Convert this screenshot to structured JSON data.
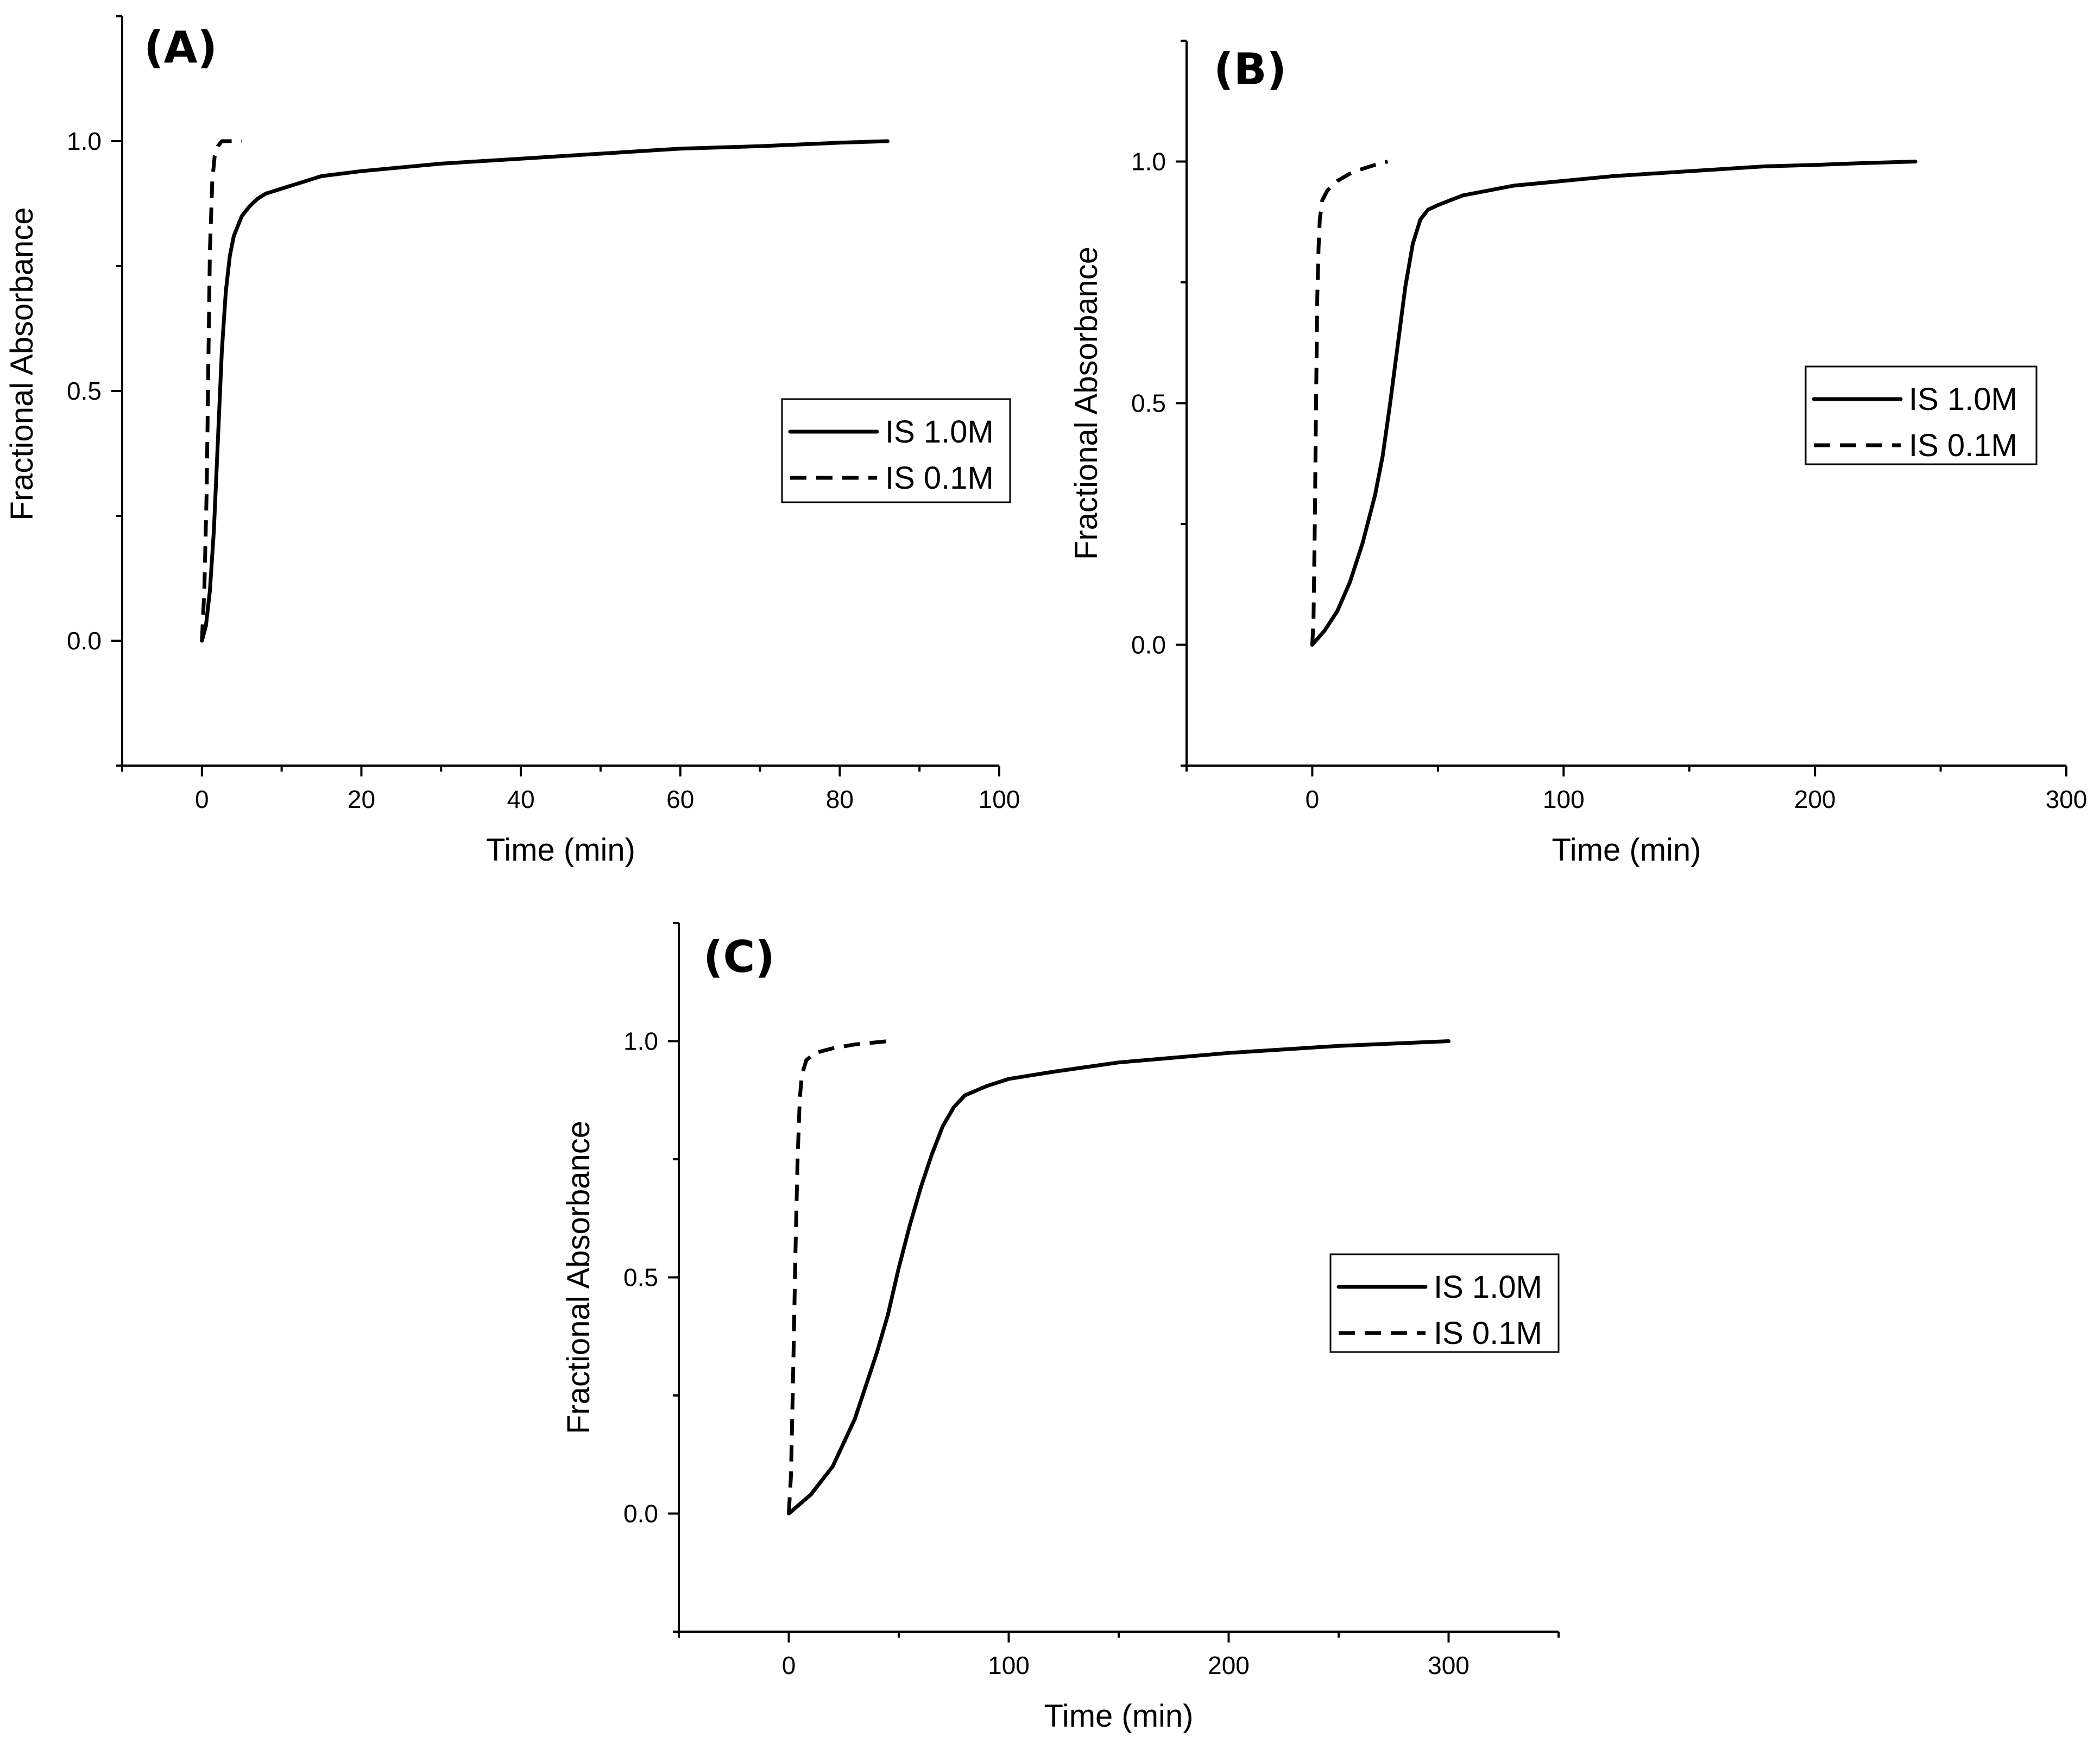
{
  "chart_data": [
    {
      "id": "A",
      "type": "line",
      "panel_label": "(A)",
      "xlabel": "Time (min)",
      "ylabel": "Fractional Absorbance",
      "xlim": [
        -10,
        100
      ],
      "ylim": [
        -0.25,
        1.25
      ],
      "xticks": [
        0,
        20,
        40,
        60,
        80,
        100
      ],
      "xtick_labels": [
        "0",
        "20",
        "40",
        "60",
        "80",
        "100"
      ],
      "yticks": [
        0.0,
        0.5,
        1.0
      ],
      "ytick_labels": [
        "0.0",
        "0.5",
        "1.0"
      ],
      "legend_position": "center-right",
      "series": [
        {
          "name": "IS 1.0M",
          "style": "solid",
          "x": [
            0,
            0.5,
            1,
            1.5,
            2,
            2.5,
            3,
            3.5,
            4,
            5,
            6,
            7,
            8,
            10,
            12,
            15,
            20,
            30,
            40,
            50,
            60,
            70,
            80,
            86
          ],
          "y": [
            0,
            0.03,
            0.1,
            0.22,
            0.4,
            0.58,
            0.7,
            0.77,
            0.81,
            0.85,
            0.87,
            0.885,
            0.895,
            0.905,
            0.915,
            0.93,
            0.94,
            0.955,
            0.965,
            0.975,
            0.985,
            0.99,
            0.997,
            1.0
          ]
        },
        {
          "name": "IS 0.1M",
          "style": "dashed",
          "x": [
            0,
            0.3,
            0.6,
            0.8,
            1.0,
            1.3,
            1.6,
            2.0,
            2.5,
            3.5,
            5
          ],
          "y": [
            0,
            0.1,
            0.3,
            0.55,
            0.78,
            0.92,
            0.97,
            0.99,
            1.0,
            1.0,
            1.0
          ]
        }
      ]
    },
    {
      "id": "B",
      "type": "line",
      "panel_label": "(B)",
      "xlabel": "Time (min)",
      "ylabel": "Fractional Absorbance",
      "xlim": [
        -50,
        300
      ],
      "ylim": [
        -0.25,
        1.25
      ],
      "xticks": [
        0,
        100,
        200,
        300
      ],
      "xtick_labels": [
        "0",
        "100",
        "200",
        "300"
      ],
      "yticks": [
        0.0,
        0.5,
        1.0
      ],
      "ytick_labels": [
        "0.0",
        "0.5",
        "1.0"
      ],
      "legend_position": "right",
      "series": [
        {
          "name": "IS 1.0M",
          "style": "solid",
          "x": [
            0,
            5,
            10,
            15,
            20,
            25,
            28,
            31,
            34,
            37,
            40,
            43,
            46,
            50,
            55,
            60,
            70,
            80,
            100,
            120,
            150,
            180,
            200,
            220,
            240
          ],
          "y": [
            0,
            0.03,
            0.07,
            0.13,
            0.21,
            0.31,
            0.39,
            0.5,
            0.62,
            0.74,
            0.83,
            0.88,
            0.9,
            0.91,
            0.92,
            0.93,
            0.94,
            0.95,
            0.96,
            0.97,
            0.98,
            0.99,
            0.993,
            0.997,
            1.0
          ]
        },
        {
          "name": "IS 0.1M",
          "style": "dashed",
          "x": [
            0,
            0.5,
            1,
            1.5,
            2,
            2.5,
            3,
            4,
            6,
            10,
            15,
            20,
            25,
            30
          ],
          "y": [
            0,
            0.05,
            0.25,
            0.5,
            0.72,
            0.82,
            0.88,
            0.92,
            0.94,
            0.96,
            0.975,
            0.985,
            0.993,
            1.0
          ]
        }
      ]
    },
    {
      "id": "C",
      "type": "line",
      "panel_label": "(C)",
      "xlabel": "Time (min)",
      "ylabel": "Fractional Absorbance",
      "xlim": [
        -50,
        350
      ],
      "ylim": [
        -0.25,
        1.25
      ],
      "xticks": [
        0,
        100,
        200,
        300
      ],
      "xtick_labels": [
        "0",
        "100",
        "200",
        "300"
      ],
      "yticks": [
        0.0,
        0.5,
        1.0
      ],
      "ytick_labels": [
        "0.0",
        "0.5",
        "1.0"
      ],
      "legend_position": "right",
      "series": [
        {
          "name": "IS 1.0M",
          "style": "solid",
          "x": [
            0,
            10,
            20,
            30,
            40,
            45,
            50,
            55,
            60,
            65,
            70,
            75,
            80,
            90,
            100,
            120,
            150,
            200,
            250,
            300
          ],
          "y": [
            0,
            0.04,
            0.1,
            0.2,
            0.34,
            0.42,
            0.52,
            0.61,
            0.69,
            0.76,
            0.82,
            0.86,
            0.885,
            0.905,
            0.92,
            0.935,
            0.955,
            0.975,
            0.99,
            1.0
          ]
        },
        {
          "name": "IS 0.1M",
          "style": "dashed",
          "x": [
            0,
            1,
            2,
            3,
            4,
            5,
            6,
            8,
            12,
            20,
            30,
            45
          ],
          "y": [
            0,
            0.08,
            0.3,
            0.55,
            0.75,
            0.88,
            0.93,
            0.96,
            0.975,
            0.985,
            0.993,
            1.0
          ]
        }
      ]
    }
  ]
}
